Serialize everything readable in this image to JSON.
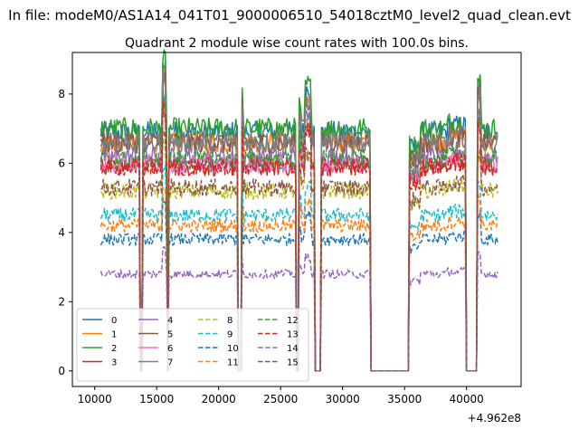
{
  "chart_data": {
    "type": "line",
    "suptitle": "In file: modeM0/AS1A14_041T01_9000006510_54018cztM0_level2_quad_clean.evt",
    "title": "Quadrant 2 module wise count rates with 100.0s bins.",
    "xlabel": "",
    "ylabel": "",
    "x_offset_label": "+4.962e8",
    "xlim": [
      8200,
      44400
    ],
    "ylim": [
      -0.45,
      9.2
    ],
    "x_ticks": [
      10000,
      15000,
      20000,
      25000,
      30000,
      35000,
      40000
    ],
    "x_tick_labels": [
      "10000",
      "15000",
      "20000",
      "25000",
      "30000",
      "35000",
      "40000"
    ],
    "y_ticks": [
      0,
      2,
      4,
      6,
      8
    ],
    "y_tick_labels": [
      "0",
      "2",
      "4",
      "6",
      "8"
    ],
    "x_start": 10500,
    "x_end": 42500,
    "bin_width_s": 100,
    "segments": [
      [
        10500,
        13650
      ],
      [
        13850,
        15850
      ],
      [
        15950,
        21550
      ],
      [
        21850,
        26250
      ],
      [
        26450,
        27750
      ],
      [
        28250,
        32250
      ],
      [
        35350,
        39950
      ],
      [
        40850,
        42500
      ]
    ],
    "series": [
      {
        "name": "0",
        "color": "#1f77b4",
        "dash": "solid",
        "level": 6.9
      },
      {
        "name": "1",
        "color": "#ff7f0e",
        "dash": "solid",
        "level": 6.6
      },
      {
        "name": "2",
        "color": "#2ca02c",
        "dash": "solid",
        "level": 7.0
      },
      {
        "name": "3",
        "color": "#d62728",
        "dash": "solid",
        "level": 5.9
      },
      {
        "name": "4",
        "color": "#9467bd",
        "dash": "solid",
        "level": 6.2
      },
      {
        "name": "5",
        "color": "#8c564b",
        "dash": "solid",
        "level": 6.6
      },
      {
        "name": "6",
        "color": "#e377c2",
        "dash": "solid",
        "level": 6.0
      },
      {
        "name": "7",
        "color": "#7f7f7f",
        "dash": "solid",
        "level": 6.6
      },
      {
        "name": "8",
        "color": "#bcbd22",
        "dash": "dashed",
        "level": 5.2
      },
      {
        "name": "9",
        "color": "#17becf",
        "dash": "dashed",
        "level": 4.5
      },
      {
        "name": "10",
        "color": "#1f77b4",
        "dash": "dashed",
        "level": 3.8
      },
      {
        "name": "11",
        "color": "#ff7f0e",
        "dash": "dashed",
        "level": 4.2
      },
      {
        "name": "12",
        "color": "#2ca02c",
        "dash": "dashed",
        "level": 6.1
      },
      {
        "name": "13",
        "color": "#d62728",
        "dash": "dashed",
        "level": 5.9
      },
      {
        "name": "14",
        "color": "#9467bd",
        "dash": "dashed",
        "level": 2.8
      },
      {
        "name": "15",
        "color": "#8c564b",
        "dash": "dashed",
        "level": 5.3
      }
    ],
    "legend_position": "lower left",
    "legend_columns": 4,
    "grid": false
  }
}
